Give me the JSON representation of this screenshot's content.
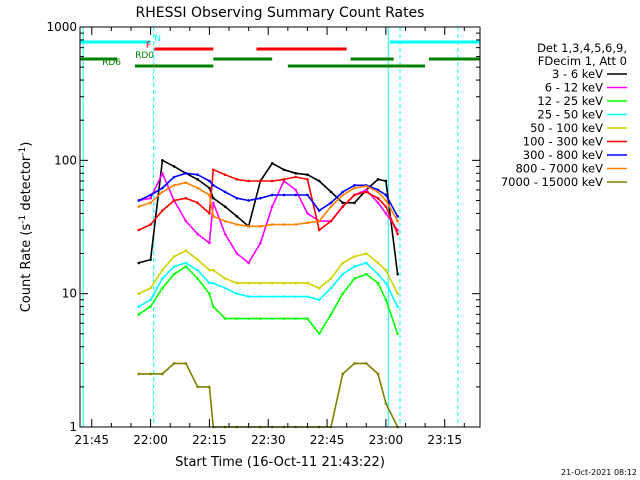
{
  "chart_data": {
    "type": "line",
    "title": "RHESSI Observing Summary Count Rates",
    "xlabel": "Start Time (16-Oct-11 21:43:22)",
    "ylabel": "Count Rate (s⁻¹ detector⁻¹)",
    "yscale": "log",
    "ylim": [
      1,
      1000
    ],
    "xlim_minutes": [
      -3,
      99
    ],
    "x_ticks": [
      {
        "label": "21:45",
        "t": 0
      },
      {
        "label": "22:00",
        "t": 15
      },
      {
        "label": "22:15",
        "t": 30
      },
      {
        "label": "22:30",
        "t": 45
      },
      {
        "label": "22:45",
        "t": 60
      },
      {
        "label": "23:00",
        "t": 75
      },
      {
        "label": "23:15",
        "t": 90
      }
    ],
    "y_ticks": [
      {
        "label": "1",
        "v": 1
      },
      {
        "label": "10",
        "v": 10
      },
      {
        "label": "100",
        "v": 100
      },
      {
        "label": "1000",
        "v": 1000
      }
    ],
    "legend": {
      "placement": "right",
      "header": [
        "Det 1,3,4,5,6,9,",
        "FDecim 1, Att 0"
      ],
      "entries": [
        {
          "label": "3 - 6 keV",
          "color": "#000000"
        },
        {
          "label": "6 - 12 keV",
          "color": "#ff00ff"
        },
        {
          "label": "12 - 25 keV",
          "color": "#00ff00"
        },
        {
          "label": "25 - 50 keV",
          "color": "#00ffff"
        },
        {
          "label": "50 - 100 keV",
          "color": "#d2d200"
        },
        {
          "label": "100 - 300 keV",
          "color": "#ff0000"
        },
        {
          "label": "300 - 800 keV",
          "color": "#0000ff"
        },
        {
          "label": "800 - 7000 keV",
          "color": "#ff8000"
        },
        {
          "label": "7000 - 15000 keV",
          "color": "#808000"
        }
      ]
    },
    "flag_bars": [
      {
        "label": "N",
        "color": "#00ffff",
        "segments": [
          [
            -3,
            15
          ],
          [
            76,
            99
          ]
        ]
      },
      {
        "label": "F",
        "color": "#ff0000",
        "segments": [
          [
            16,
            31
          ],
          [
            42,
            65
          ]
        ]
      },
      {
        "label": "RD0",
        "color": "#008000",
        "segments": [
          [
            -3,
            6.5
          ],
          [
            31,
            46
          ],
          [
            66,
            77
          ],
          [
            86,
            99
          ]
        ]
      },
      {
        "label": "RD6",
        "color": "#008000",
        "segments": [
          [
            11,
            31
          ],
          [
            50,
            85
          ]
        ]
      }
    ],
    "vertical_markers": [
      {
        "t": -2.2,
        "style": "solid",
        "color": "#00ffff"
      },
      {
        "t": 15.8,
        "style": "dashed",
        "color": "#00ffff"
      },
      {
        "t": 75.6,
        "style": "solid",
        "color": "#00ffff"
      },
      {
        "t": 78.6,
        "style": "dashed",
        "color": "#00ffff"
      },
      {
        "t": 93.4,
        "style": "dashed",
        "color": "#00ffff"
      }
    ],
    "series_time_minutes": [
      12,
      15,
      18,
      21,
      24,
      27,
      30,
      31,
      34,
      37,
      40,
      43,
      46,
      49,
      52,
      55,
      58,
      61,
      64,
      67,
      70,
      73,
      75,
      78
    ],
    "series": [
      {
        "name": "3 - 6 keV",
        "color": "#000000",
        "values": [
          17,
          18,
          100,
          90,
          80,
          72,
          62,
          52,
          45,
          38,
          32,
          70,
          95,
          85,
          80,
          78,
          70,
          58,
          48,
          48,
          60,
          72,
          70,
          14
        ]
      },
      {
        "name": "6 - 12 keV",
        "color": "#ff00ff",
        "values": [
          50,
          52,
          80,
          50,
          35,
          28,
          24,
          48,
          28,
          20,
          17,
          24,
          45,
          70,
          60,
          40,
          35,
          35,
          45,
          55,
          60,
          48,
          40,
          30
        ]
      },
      {
        "name": "12 - 25 keV",
        "color": "#00ff00",
        "values": [
          7,
          8,
          11,
          14,
          16,
          13,
          10,
          8,
          6.5,
          6.5,
          6.5,
          6.5,
          6.5,
          6.5,
          6.5,
          6.5,
          5,
          7,
          10,
          13,
          14,
          12,
          9,
          5
        ]
      },
      {
        "name": "25 - 50 keV",
        "color": "#00ffff",
        "values": [
          8,
          9,
          13,
          16,
          17,
          15,
          12,
          12,
          11,
          10,
          9.5,
          9.5,
          9.5,
          9.5,
          9.5,
          9.5,
          9,
          11,
          14,
          16,
          17,
          14,
          12,
          8
        ]
      },
      {
        "name": "50 - 100 keV",
        "color": "#d2d200",
        "values": [
          10,
          11,
          15,
          19,
          21,
          18,
          15,
          15,
          13,
          12,
          12,
          12,
          12,
          12,
          12,
          12,
          11,
          13,
          17,
          19,
          20,
          17,
          15,
          10
        ]
      },
      {
        "name": "100 - 300 keV",
        "color": "#ff0000",
        "values": [
          30,
          33,
          42,
          50,
          52,
          48,
          40,
          85,
          78,
          72,
          70,
          70,
          70,
          72,
          75,
          72,
          30,
          35,
          45,
          55,
          58,
          52,
          45,
          28
        ]
      },
      {
        "name": "300 - 800 keV",
        "color": "#0000ff",
        "values": [
          50,
          55,
          62,
          75,
          80,
          78,
          70,
          65,
          58,
          52,
          50,
          52,
          55,
          55,
          55,
          55,
          42,
          48,
          58,
          65,
          65,
          60,
          55,
          38
        ]
      },
      {
        "name": "800 - 7000 keV",
        "color": "#ff8000",
        "values": [
          45,
          48,
          58,
          65,
          68,
          62,
          55,
          38,
          35,
          33,
          32,
          32,
          33,
          33,
          33,
          34,
          35,
          45,
          55,
          62,
          64,
          58,
          50,
          35
        ]
      },
      {
        "name": "7000 - 15000 keV",
        "color": "#808000",
        "values": [
          2.5,
          2.5,
          2.5,
          3,
          3,
          2,
          2,
          1,
          1,
          1,
          1,
          1,
          1,
          1,
          1,
          1,
          1,
          1,
          2.5,
          3,
          3,
          2.5,
          1.5,
          1
        ]
      }
    ],
    "grid": false
  },
  "footer": {
    "timestamp": "21-Oct-2021 08:12"
  }
}
